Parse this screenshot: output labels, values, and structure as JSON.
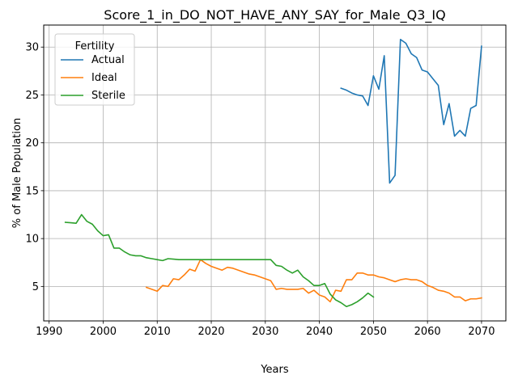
{
  "chart_data": {
    "type": "line",
    "title": "Score_1_in_DO_NOT_HAVE_ANY_SAY_for_Male_Q3_IQ",
    "xlabel": "Years",
    "ylabel": "% of Male Population",
    "xlim": [
      1989,
      2074.5
    ],
    "ylim": [
      1.4,
      32.3
    ],
    "xticks": [
      1990,
      2000,
      2010,
      2020,
      2030,
      2040,
      2050,
      2060,
      2070
    ],
    "yticks": [
      5,
      10,
      15,
      20,
      25,
      30
    ],
    "grid": true,
    "legend": {
      "title": "Fertility",
      "placement": "top-left"
    },
    "series": [
      {
        "name": "Actual",
        "color": "#1f77b4",
        "x": [
          2044,
          2045,
          2046,
          2047,
          2048,
          2049,
          2050,
          2051,
          2052,
          2053,
          2054,
          2055,
          2056,
          2057,
          2058,
          2059,
          2060,
          2061,
          2062,
          2063,
          2064,
          2065,
          2066,
          2067,
          2068,
          2069,
          2070
        ],
        "y": [
          25.7,
          25.5,
          25.2,
          25.0,
          24.9,
          23.9,
          27.0,
          25.6,
          29.1,
          15.8,
          16.6,
          30.8,
          30.4,
          29.3,
          28.9,
          27.6,
          27.4,
          26.7,
          26.0,
          21.9,
          24.1,
          20.7,
          21.3,
          20.7,
          23.6,
          23.9,
          30.1
        ]
      },
      {
        "name": "Ideal",
        "color": "#ff7f0e",
        "x": [
          2008,
          2009,
          2010,
          2011,
          2012,
          2013,
          2014,
          2015,
          2016,
          2017,
          2018,
          2019,
          2020,
          2021,
          2022,
          2023,
          2024,
          2025,
          2026,
          2027,
          2028,
          2029,
          2030,
          2031,
          2032,
          2033,
          2034,
          2035,
          2036,
          2037,
          2038,
          2039,
          2040,
          2041,
          2042,
          2043,
          2044,
          2045,
          2046,
          2047,
          2048,
          2049,
          2050,
          2051,
          2052,
          2053,
          2054,
          2055,
          2056,
          2057,
          2058,
          2059,
          2060,
          2061,
          2062,
          2063,
          2064,
          2065,
          2066,
          2067,
          2068,
          2069,
          2070
        ],
        "y": [
          4.9,
          4.7,
          4.5,
          5.1,
          5.0,
          5.8,
          5.7,
          6.2,
          6.8,
          6.6,
          7.8,
          7.4,
          7.1,
          6.9,
          6.7,
          7.0,
          6.9,
          6.7,
          6.5,
          6.3,
          6.2,
          6.0,
          5.8,
          5.6,
          4.7,
          4.8,
          4.7,
          4.7,
          4.7,
          4.8,
          4.3,
          4.6,
          4.1,
          3.9,
          3.4,
          4.6,
          4.5,
          5.7,
          5.7,
          6.4,
          6.4,
          6.2,
          6.2,
          6.0,
          5.9,
          5.7,
          5.5,
          5.7,
          5.8,
          5.7,
          5.7,
          5.5,
          5.1,
          4.9,
          4.6,
          4.5,
          4.3,
          3.9,
          3.9,
          3.5,
          3.7,
          3.7,
          3.8
        ]
      },
      {
        "name": "Sterile",
        "color": "#2ca02c",
        "x": [
          1993,
          1994,
          1995,
          1996,
          1997,
          1998,
          1999,
          2000,
          2001,
          2002,
          2003,
          2004,
          2005,
          2006,
          2007,
          2008,
          2009,
          2010,
          2011,
          2012,
          2013,
          2014,
          2015,
          2016,
          2017,
          2018,
          2019,
          2020,
          2021,
          2022,
          2023,
          2024,
          2025,
          2026,
          2027,
          2028,
          2029,
          2030,
          2031,
          2032,
          2033,
          2034,
          2035,
          2036,
          2037,
          2038,
          2039,
          2040,
          2041,
          2042,
          2043,
          2044,
          2045,
          2046,
          2047,
          2048,
          2049,
          2050
        ],
        "y": [
          11.7,
          11.65,
          11.6,
          12.5,
          11.8,
          11.5,
          10.8,
          10.3,
          10.4,
          9.0,
          9.0,
          8.6,
          8.3,
          8.2,
          8.2,
          8.0,
          7.9,
          7.8,
          7.7,
          7.9,
          7.85,
          7.8,
          7.8,
          7.8,
          7.8,
          7.8,
          7.8,
          7.8,
          7.8,
          7.8,
          7.8,
          7.8,
          7.8,
          7.8,
          7.8,
          7.8,
          7.8,
          7.8,
          7.8,
          7.2,
          7.1,
          6.7,
          6.4,
          6.7,
          6.0,
          5.6,
          5.1,
          5.1,
          5.3,
          4.2,
          3.6,
          3.3,
          2.9,
          3.1,
          3.4,
          3.8,
          4.3,
          3.9
        ]
      }
    ]
  }
}
